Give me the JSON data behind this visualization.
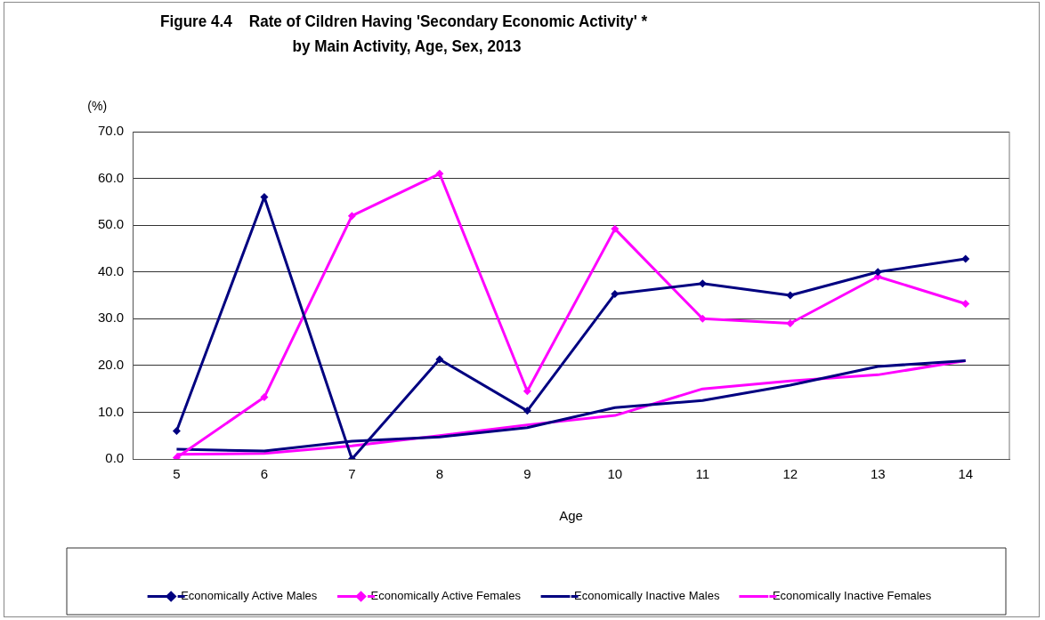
{
  "chart_data": {
    "type": "line",
    "title": "Figure 4.4    Rate of Cildren Having 'Secondary Economic Activity' *\nby Main Activity, Age, Sex, 2013",
    "xlabel": "Age",
    "ylabel": "(%)",
    "categories": [
      "5",
      "6",
      "7",
      "8",
      "9",
      "10",
      "11",
      "12",
      "13",
      "14"
    ],
    "series": [
      {
        "name": "Economically Active Males",
        "color": "#000080",
        "marker": "diamond",
        "values": [
          6.0,
          56.0,
          0.0,
          21.3,
          10.3,
          35.3,
          37.5,
          35.0,
          40.0,
          42.8
        ]
      },
      {
        "name": "Economically Active Females",
        "color": "#ff00ff",
        "marker": "diamond",
        "values": [
          0.3,
          13.2,
          52.0,
          61.0,
          14.5,
          49.2,
          30.0,
          29.0,
          39.0,
          33.2
        ]
      },
      {
        "name": "Economically Inactive Males",
        "color": "#000080",
        "marker": "none",
        "values": [
          2.1,
          1.7,
          3.8,
          4.7,
          6.7,
          11.0,
          12.5,
          15.8,
          19.8,
          21.0
        ]
      },
      {
        "name": "Economically Inactive Females",
        "color": "#ff00ff",
        "marker": "none",
        "values": [
          1.0,
          1.2,
          2.8,
          5.0,
          7.3,
          9.3,
          15.0,
          16.7,
          18.0,
          21.0
        ]
      }
    ],
    "ylim": [
      0,
      70
    ],
    "yticks": [
      {
        "value": 0,
        "label": "0.0"
      },
      {
        "value": 10,
        "label": "10.0"
      },
      {
        "value": 20,
        "label": "20.0"
      },
      {
        "value": 30,
        "label": "30.0"
      },
      {
        "value": 40,
        "label": "40.0"
      },
      {
        "value": 50,
        "label": "50.0"
      },
      {
        "value": 60,
        "label": "60.0"
      },
      {
        "value": 70,
        "label": "70.0"
      }
    ],
    "grid": "y",
    "legend": "bottom",
    "line_style": "solid"
  }
}
